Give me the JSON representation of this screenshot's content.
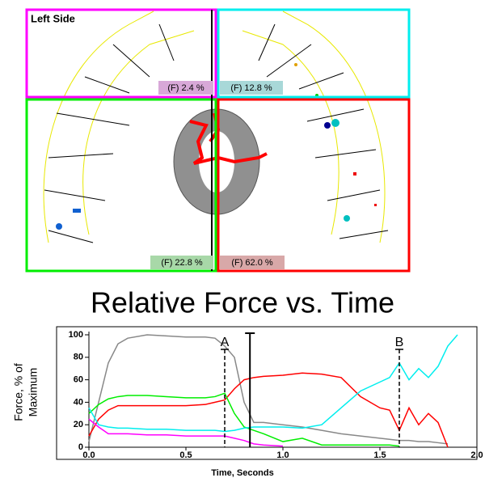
{
  "diagram": {
    "title": "Left Side",
    "quadrants": [
      "(F) 2.4 %",
      "(F) 12.8 %",
      "(F) 22.8 %",
      "(F) 62.0 %"
    ]
  },
  "chart_data": {
    "type": "line",
    "title": "Relative Force vs. Time",
    "ylabel": [
      "Force, % of",
      "Maximum"
    ],
    "xlabel": "Time, Seconds",
    "xlim": [
      0,
      2
    ],
    "xticks": [
      {
        "value": 0,
        "label": "0.0"
      },
      {
        "value": 0.5,
        "label": "0.5"
      },
      {
        "value": 1,
        "label": "1.0"
      },
      {
        "value": 1.5,
        "label": "1.5"
      },
      {
        "value": 2,
        "label": "2.0"
      }
    ],
    "ylim": [
      0,
      100
    ],
    "yticks": [
      0,
      20,
      40,
      60,
      80,
      100
    ],
    "x": [
      0,
      0.05,
      0.1,
      0.15,
      0.2,
      0.3,
      0.4,
      0.5,
      0.6,
      0.65,
      0.7,
      0.75,
      0.8,
      0.85,
      0.9,
      1.0,
      1.1,
      1.2,
      1.3,
      1.4,
      1.5,
      1.55,
      1.6,
      1.65,
      1.7,
      1.75,
      1.8,
      1.85,
      1.9
    ],
    "series": [
      {
        "color": "#888888",
        "values": [
          5,
          40,
          75,
          92,
          97,
          100,
          99,
          98,
          98,
          97,
          90,
          80,
          40,
          22,
          22,
          20,
          18,
          15,
          12,
          10,
          8,
          7,
          6,
          6,
          5,
          5,
          4,
          3,
          null
        ]
      },
      {
        "color": "#ff0000",
        "values": [
          10,
          25,
          33,
          37,
          37,
          37,
          37,
          37,
          38,
          40,
          42,
          52,
          60,
          62,
          63,
          64,
          66,
          65,
          62,
          45,
          35,
          33,
          15,
          35,
          20,
          30,
          22,
          0,
          null
        ]
      },
      {
        "color": "#00ee00",
        "values": [
          30,
          38,
          43,
          45,
          46,
          46,
          45,
          44,
          44,
          45,
          48,
          30,
          18,
          15,
          12,
          5,
          8,
          2,
          2,
          2,
          2,
          2,
          1,
          null,
          null,
          null,
          null,
          null,
          null
        ]
      },
      {
        "color": "#ff00ff",
        "values": [
          25,
          18,
          12,
          12,
          12,
          11,
          11,
          10,
          10,
          10,
          10,
          8,
          6,
          3,
          2,
          1,
          null,
          null,
          null,
          null,
          null,
          null,
          null,
          null,
          null,
          null,
          null,
          null,
          null
        ]
      },
      {
        "color": "#00eeee",
        "values": [
          35,
          20,
          18,
          17,
          17,
          16,
          16,
          15,
          15,
          15,
          14,
          15,
          17,
          18,
          18,
          18,
          17,
          20,
          35,
          50,
          58,
          62,
          75,
          60,
          70,
          62,
          72,
          90,
          100
        ]
      }
    ],
    "annotations": [
      {
        "x": 0.7,
        "label": "A"
      },
      {
        "x": 1.6,
        "label": "B"
      }
    ],
    "cursor_x": 0.83
  }
}
